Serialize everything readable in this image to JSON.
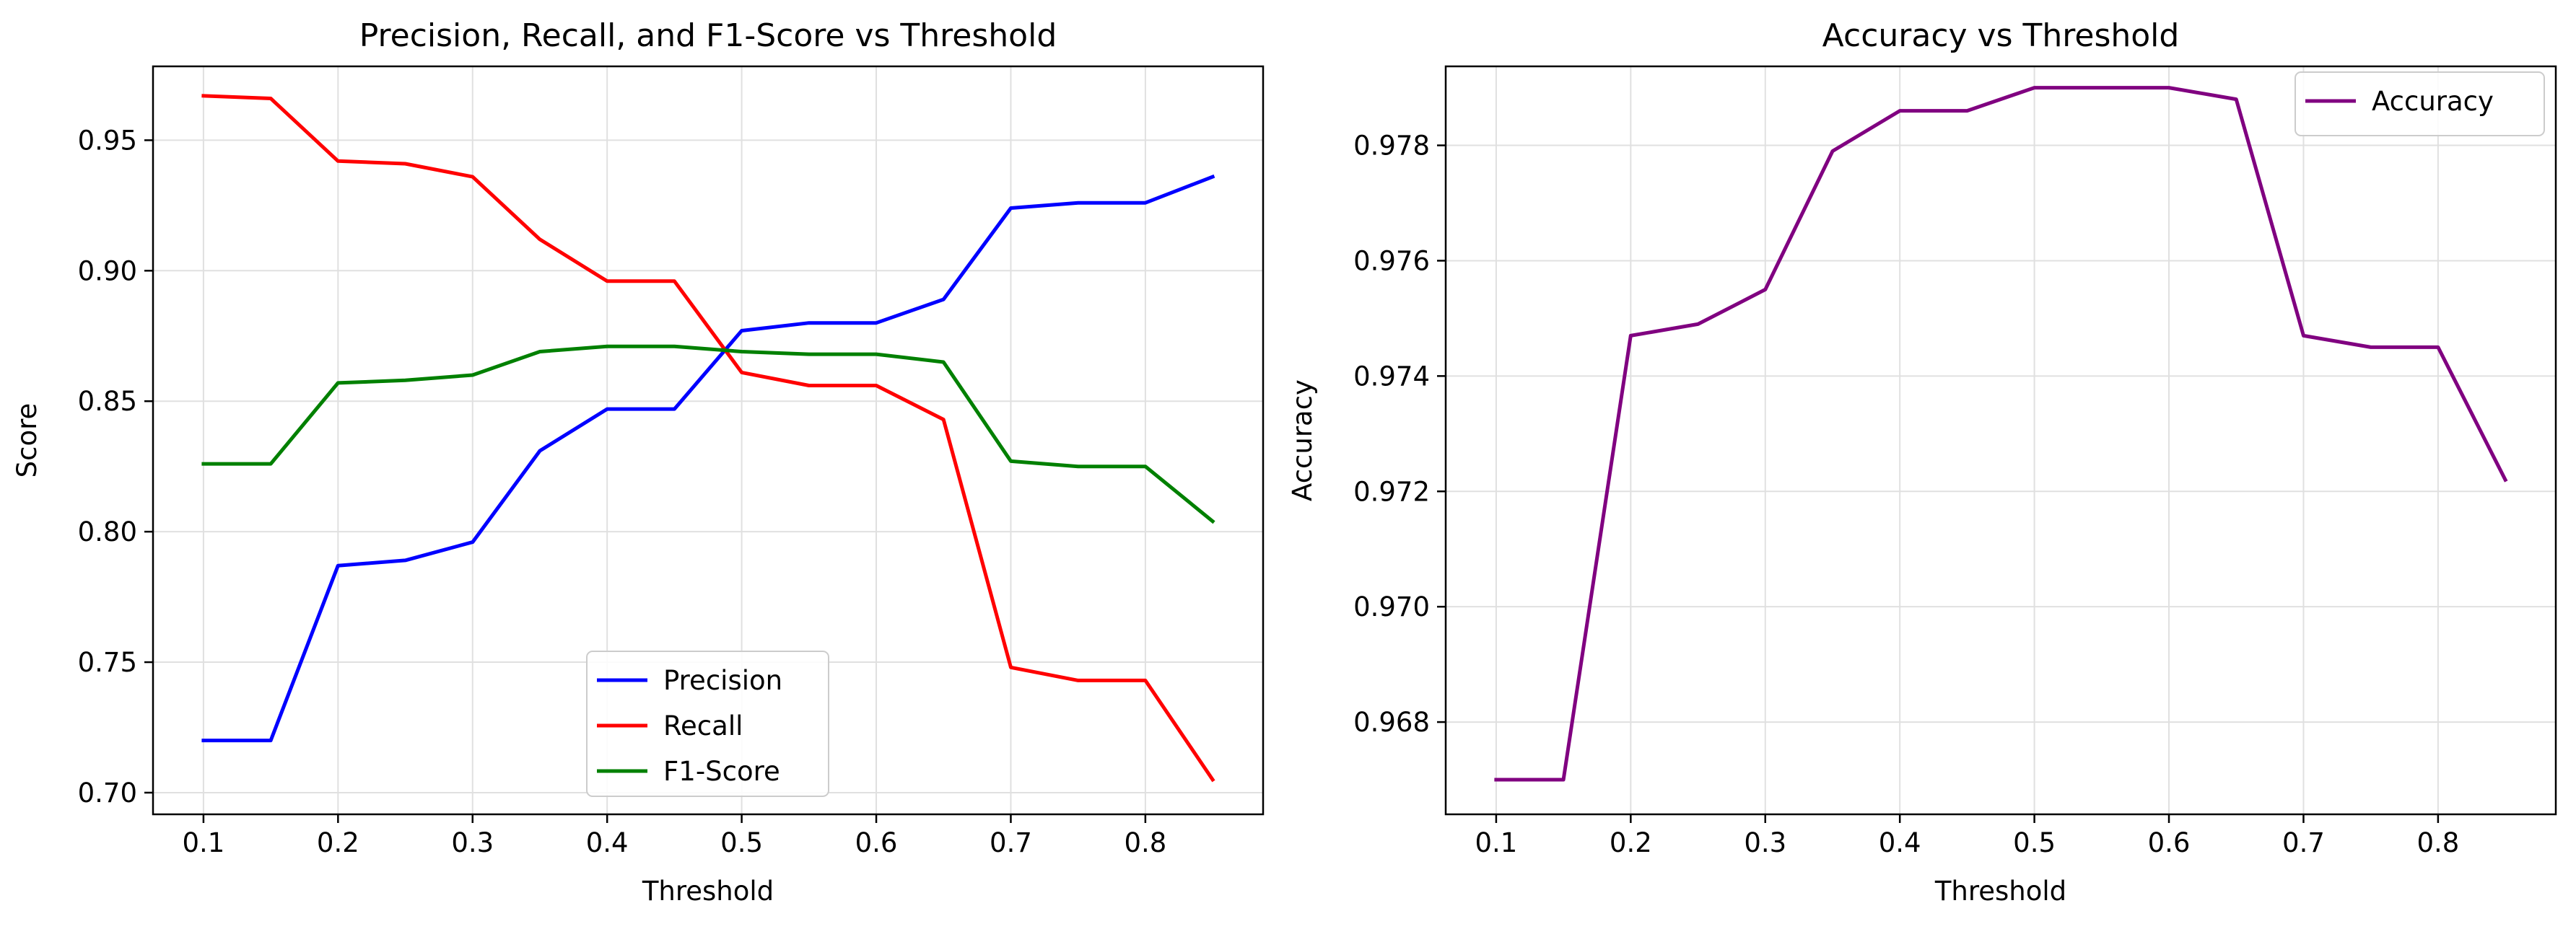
{
  "chart_data": [
    {
      "type": "line",
      "title": "Precision, Recall, and F1-Score vs Threshold",
      "xlabel": "Threshold",
      "ylabel": "Score",
      "xlim": [
        0.0625,
        0.8875
      ],
      "ylim": [
        0.6917,
        0.9783
      ],
      "xticks": [
        0.1,
        0.2,
        0.3,
        0.4,
        0.5,
        0.6,
        0.7,
        0.8
      ],
      "xtick_labels": [
        "0.1",
        "0.2",
        "0.3",
        "0.4",
        "0.5",
        "0.6",
        "0.7",
        "0.8"
      ],
      "yticks": [
        0.7,
        0.75,
        0.8,
        0.85,
        0.9,
        0.95
      ],
      "ytick_labels": [
        "0.70",
        "0.75",
        "0.80",
        "0.85",
        "0.90",
        "0.95"
      ],
      "grid": true,
      "legend_position": "lower-center",
      "x": [
        0.1,
        0.15,
        0.2,
        0.25,
        0.3,
        0.35,
        0.4,
        0.45,
        0.5,
        0.55,
        0.6,
        0.65,
        0.7,
        0.75,
        0.8,
        0.85
      ],
      "series": [
        {
          "name": "Precision",
          "color": "#0000ff",
          "values": [
            0.72,
            0.72,
            0.787,
            0.789,
            0.796,
            0.831,
            0.847,
            0.847,
            0.877,
            0.88,
            0.88,
            0.889,
            0.924,
            0.926,
            0.926,
            0.936
          ]
        },
        {
          "name": "Recall",
          "color": "#ff0000",
          "values": [
            0.967,
            0.966,
            0.942,
            0.941,
            0.936,
            0.912,
            0.896,
            0.896,
            0.861,
            0.856,
            0.856,
            0.843,
            0.748,
            0.743,
            0.743,
            0.705
          ]
        },
        {
          "name": "F1-Score",
          "color": "#008000",
          "values": [
            0.826,
            0.826,
            0.857,
            0.858,
            0.86,
            0.869,
            0.871,
            0.871,
            0.869,
            0.868,
            0.868,
            0.865,
            0.827,
            0.825,
            0.825,
            0.804
          ]
        }
      ]
    },
    {
      "type": "line",
      "title": "Accuracy vs Threshold",
      "xlabel": "Threshold",
      "ylabel": "Accuracy",
      "xlim": [
        0.0625,
        0.8875
      ],
      "ylim": [
        0.9664,
        0.97937
      ],
      "xticks": [
        0.1,
        0.2,
        0.3,
        0.4,
        0.5,
        0.6,
        0.7,
        0.8
      ],
      "xtick_labels": [
        "0.1",
        "0.2",
        "0.3",
        "0.4",
        "0.5",
        "0.6",
        "0.7",
        "0.8"
      ],
      "yticks": [
        0.968,
        0.97,
        0.972,
        0.974,
        0.976,
        0.978
      ],
      "ytick_labels": [
        "0.968",
        "0.970",
        "0.972",
        "0.974",
        "0.976",
        "0.978"
      ],
      "grid": true,
      "legend_position": "upper-right",
      "x": [
        0.1,
        0.15,
        0.2,
        0.25,
        0.3,
        0.35,
        0.4,
        0.45,
        0.5,
        0.55,
        0.6,
        0.65,
        0.7,
        0.75,
        0.8,
        0.85
      ],
      "series": [
        {
          "name": "Accuracy",
          "color": "#800080",
          "values": [
            0.967,
            0.967,
            0.9747,
            0.9749,
            0.9755,
            0.9779,
            0.9786,
            0.9786,
            0.979,
            0.979,
            0.979,
            0.9788,
            0.9747,
            0.9745,
            0.9745,
            0.9722
          ]
        }
      ]
    }
  ]
}
